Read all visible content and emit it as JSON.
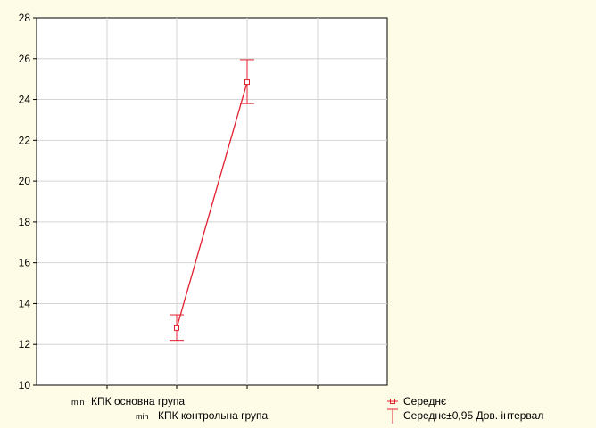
{
  "colors": {
    "background": "#fefbe6",
    "plot_background": "#ffffff",
    "series": "#e0202e",
    "grid": "#d4d4d4",
    "axis": "#000000"
  },
  "chart_data": {
    "type": "line",
    "title": "",
    "xlabel": "",
    "ylabel": "",
    "ylim": [
      10,
      28
    ],
    "yticks": [
      10,
      12,
      14,
      16,
      18,
      20,
      22,
      24,
      26,
      28
    ],
    "grid": true,
    "categories": [
      {
        "prefix": "min",
        "label": "КПК основна група"
      },
      {
        "prefix": "min",
        "label": "КПК контрольна група"
      }
    ],
    "series": [
      {
        "name": "Середнє",
        "values": [
          12.8,
          24.85
        ],
        "ci_low": [
          12.2,
          23.8
        ],
        "ci_high": [
          13.45,
          25.95
        ]
      }
    ],
    "legend": {
      "position": "bottom-right",
      "entries": [
        "Середнє",
        "Середнє±0,95 Дов. інтервал"
      ]
    }
  }
}
